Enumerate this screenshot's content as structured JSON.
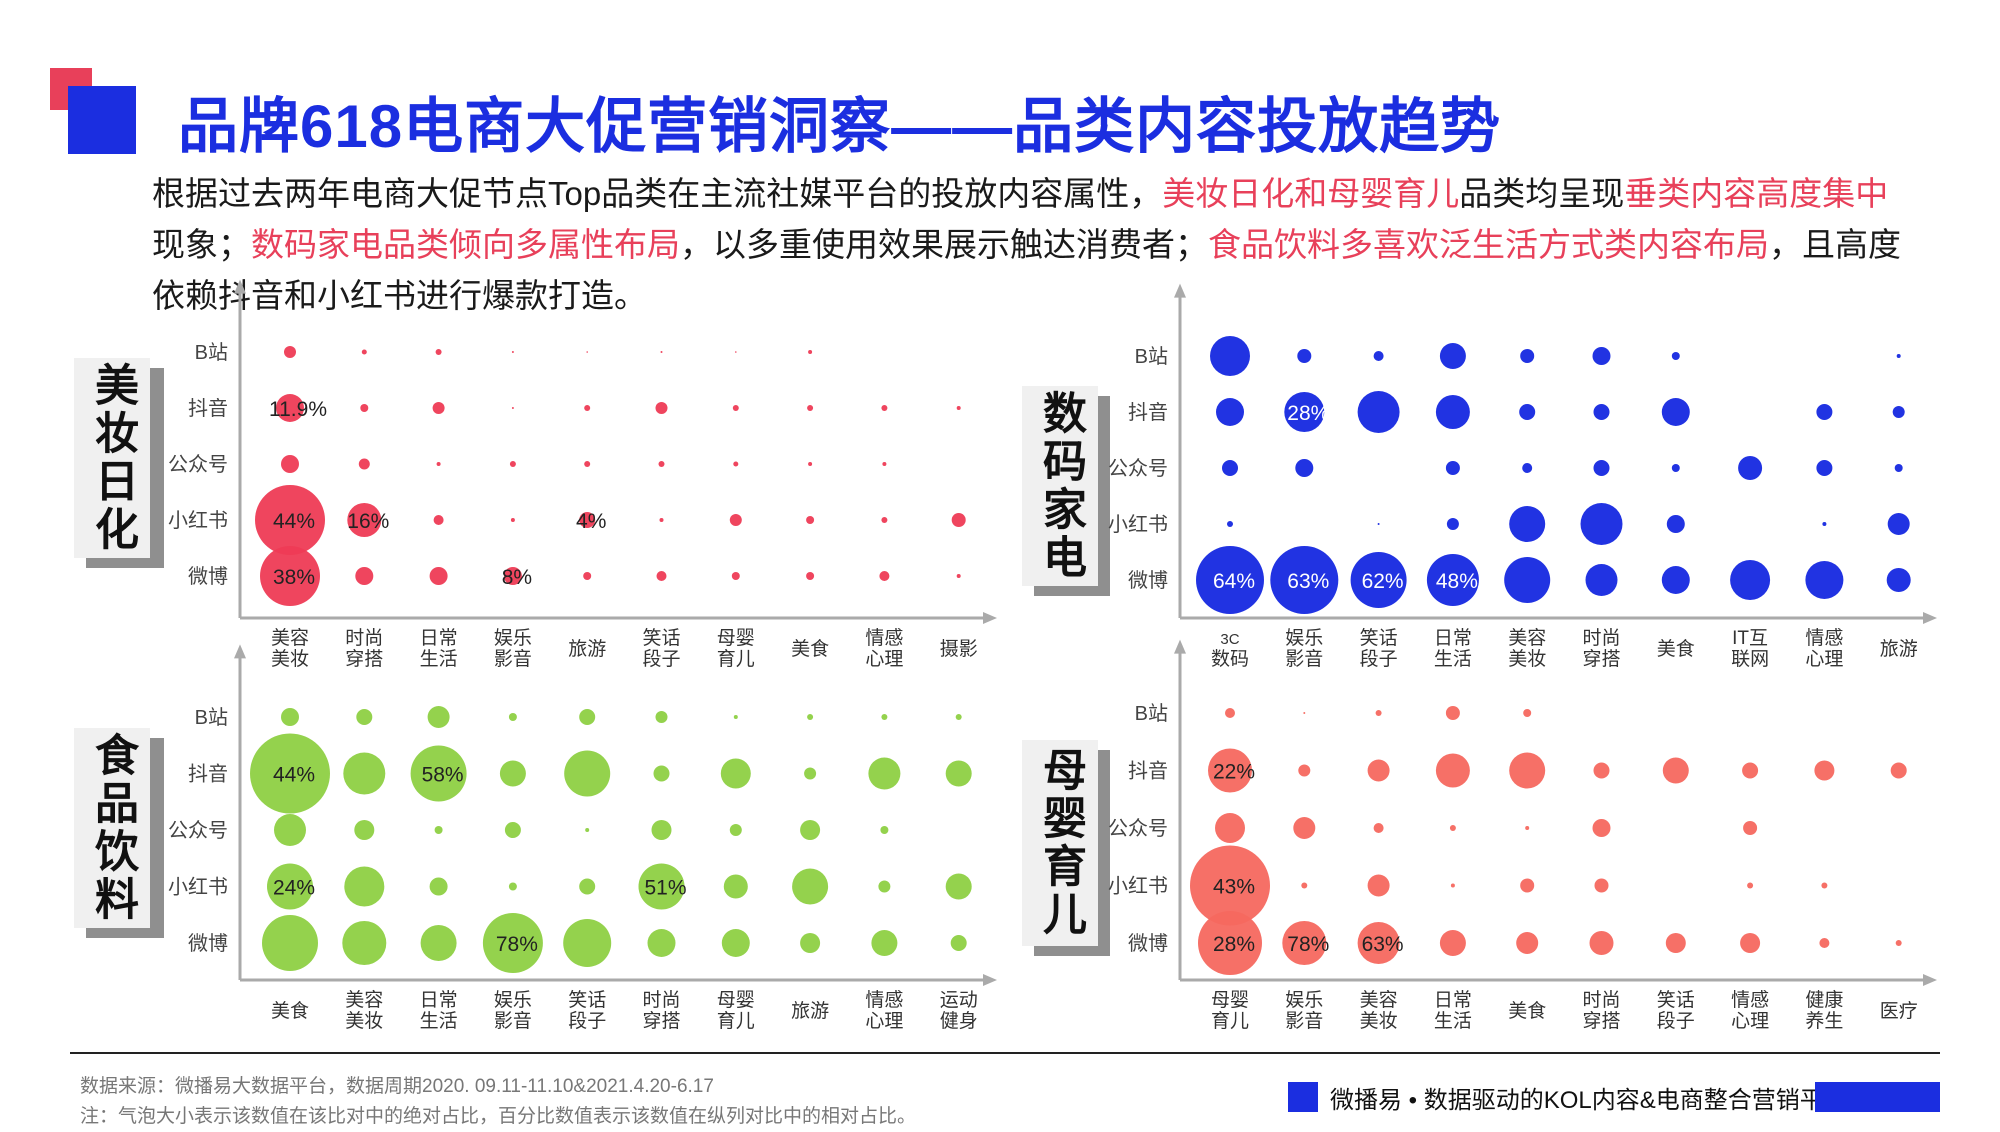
{
  "title": "品牌618电商大促营销洞察——品类内容投放趋势",
  "intro": {
    "p1": "根据过去两年电商大促节点Top品类在主流社媒平台的投放内容属性，",
    "h1": "美妆日化和母婴育儿",
    "p2": "品类均呈现",
    "h2": "垂类内容高度集中",
    "p3": "现象；",
    "h3": "数码家电品类倾向多属性布局",
    "p4": "，以多重使用效果展示触达消费者；",
    "h4": "食品饮料多喜欢泛生活方式类内容布局",
    "p5": "，且高度依赖抖音和小红书进行爆款打造。"
  },
  "chart_data": [
    {
      "id": "beauty",
      "type": "scatter",
      "panel_label": "美妆日化",
      "color": "#ee3b55",
      "rows": [
        "B站",
        "抖音",
        "公众号",
        "小红书",
        "微博"
      ],
      "columns": [
        "美容\n美妆",
        "时尚\n穿搭",
        "日常\n生活",
        "娱乐\n影音",
        "旅游",
        "笑话\n段子",
        "母婴\n育儿",
        "美食",
        "情感\n心理",
        "摄影"
      ],
      "sizes": [
        [
          6,
          2.5,
          3,
          1,
          0.8,
          1,
          0.8,
          2,
          0,
          0
        ],
        [
          14,
          4,
          6,
          1,
          3,
          6,
          3,
          3,
          3,
          2
        ],
        [
          9,
          5.5,
          2,
          3,
          3,
          3,
          2.5,
          2,
          2,
          0
        ],
        [
          35,
          17,
          5,
          2,
          8,
          2,
          6,
          4,
          3,
          7
        ],
        [
          30,
          9,
          9,
          9,
          4,
          5,
          4,
          4,
          5,
          2
        ]
      ],
      "labels": [
        [
          "",
          "",
          "",
          "",
          "",
          "",
          "",
          "",
          "",
          ""
        ],
        [
          "11.9%",
          "",
          "",
          "",
          "",
          "",
          "",
          "",
          "",
          ""
        ],
        [
          "",
          "",
          "",
          "",
          "",
          "",
          "",
          "",
          "",
          ""
        ],
        [
          "44%",
          "16%",
          "",
          "",
          "4%",
          "",
          "",
          "",
          "",
          ""
        ],
        [
          "38%",
          "",
          "",
          "8%",
          "",
          "",
          "",
          "",
          "",
          ""
        ]
      ]
    },
    {
      "id": "digital",
      "type": "scatter",
      "panel_label": "数码家电",
      "color": "#1528e0",
      "rows": [
        "B站",
        "抖音",
        "公众号",
        "小红书",
        "微博"
      ],
      "columns": [
        "3C\n数码",
        "娱乐\n影音",
        "笑话\n段子",
        "日常\n生活",
        "美容\n美妆",
        "时尚\n穿搭",
        "美食",
        "IT互\n联网",
        "情感\n心理",
        "旅游"
      ],
      "sizes": [
        [
          20,
          7,
          5,
          13,
          7,
          9,
          4,
          0,
          0,
          2
        ],
        [
          14,
          20,
          21,
          17,
          8,
          8,
          14,
          0,
          8,
          6
        ],
        [
          8,
          9,
          0,
          7,
          5,
          8,
          4,
          12,
          8,
          4
        ],
        [
          3,
          0,
          1,
          6,
          18,
          21,
          9,
          0,
          2,
          11
        ],
        [
          34,
          34,
          28,
          26,
          23,
          16,
          14,
          20,
          19,
          12
        ]
      ],
      "labels": [
        [
          "",
          "",
          "",
          "",
          "",
          "",
          "",
          "",
          "",
          ""
        ],
        [
          "",
          "28%",
          "",
          "",
          "",
          "",
          "",
          "",
          "",
          ""
        ],
        [
          "",
          "",
          "",
          "",
          "",
          "",
          "",
          "",
          "",
          ""
        ],
        [
          "",
          "",
          "",
          "",
          "",
          "",
          "",
          "",
          "",
          ""
        ],
        [
          "64%",
          "63%",
          "62%",
          "48%",
          "",
          "",
          "",
          "",
          "",
          ""
        ]
      ]
    },
    {
      "id": "food",
      "type": "scatter",
      "panel_label": "食品饮料",
      "color": "#8ed043",
      "rows": [
        "B站",
        "抖音",
        "公众号",
        "小红书",
        "微博"
      ],
      "columns": [
        "美食",
        "美容\n美妆",
        "日常\n生活",
        "娱乐\n影音",
        "笑话\n段子",
        "时尚\n穿搭",
        "母婴\n育儿",
        "旅游",
        "情感\n心理",
        "运动\n健身"
      ],
      "sizes": [
        [
          9,
          8,
          11,
          4,
          8,
          6,
          2,
          3,
          3,
          3
        ],
        [
          40,
          21,
          28,
          13,
          23,
          8,
          15,
          6,
          16,
          13
        ],
        [
          16,
          10,
          4,
          8,
          2,
          10,
          6,
          10,
          4,
          0
        ],
        [
          23,
          20,
          9,
          4,
          8,
          23,
          12,
          18,
          6,
          13
        ],
        [
          28,
          22,
          18,
          30,
          24,
          14,
          14,
          10,
          13,
          8
        ]
      ],
      "labels": [
        [
          "",
          "",
          "",
          "",
          "",
          "",
          "",
          "",
          "",
          ""
        ],
        [
          "44%",
          "",
          "58%",
          "",
          "",
          "",
          "",
          "",
          "",
          ""
        ],
        [
          "",
          "",
          "",
          "",
          "",
          "",
          "",
          "",
          "",
          ""
        ],
        [
          "24%",
          "",
          "",
          "",
          "",
          "51%",
          "",
          "",
          "",
          ""
        ],
        [
          "",
          "",
          "",
          "78%",
          "",
          "",
          "",
          "",
          "",
          ""
        ]
      ]
    },
    {
      "id": "baby",
      "type": "scatter",
      "panel_label": "母婴育儿",
      "color": "#f5685f",
      "rows": [
        "B站",
        "抖音",
        "公众号",
        "小红书",
        "微博"
      ],
      "columns": [
        "母婴\n育儿",
        "娱乐\n影音",
        "美容\n美妆",
        "日常\n生活",
        "美食",
        "时尚\n穿搭",
        "笑话\n段子",
        "情感\n心理",
        "健康\n养生",
        "医疗"
      ],
      "sizes": [
        [
          5,
          1,
          3,
          7,
          4,
          0,
          0,
          0,
          0,
          0
        ],
        [
          22,
          6,
          11,
          17,
          18,
          8,
          13,
          8,
          10,
          8
        ],
        [
          15,
          11,
          5,
          3,
          2,
          9,
          0,
          7,
          0,
          0
        ],
        [
          40,
          3,
          11,
          2,
          7,
          7,
          0,
          3,
          3,
          0
        ],
        [
          32,
          22,
          21,
          13,
          11,
          12,
          10,
          10,
          5,
          3
        ]
      ],
      "labels": [
        [
          "",
          "",
          "",
          "",
          "",
          "",
          "",
          "",
          "",
          ""
        ],
        [
          "22%",
          "",
          "",
          "",
          "",
          "",
          "",
          "",
          "",
          ""
        ],
        [
          "",
          "",
          "",
          "",
          "",
          "",
          "",
          "",
          "",
          ""
        ],
        [
          "43%",
          "",
          "",
          "",
          "",
          "",
          "",
          "",
          "",
          ""
        ],
        [
          "28%",
          "78%",
          "63%",
          "",
          "",
          "",
          "",
          "",
          "",
          ""
        ]
      ]
    }
  ],
  "footer": {
    "source": "数据来源：微播易大数据平台，数据周期2020. 09.11-11.10&2021.4.20-6.17",
    "note": "注：气泡大小表示该数值在该比对中的绝对占比，百分比数值表示该数值在纵列对比中的相对占比。",
    "brand": "微播易 • 数据驱动的KOL内容&电商整合营销平台"
  }
}
